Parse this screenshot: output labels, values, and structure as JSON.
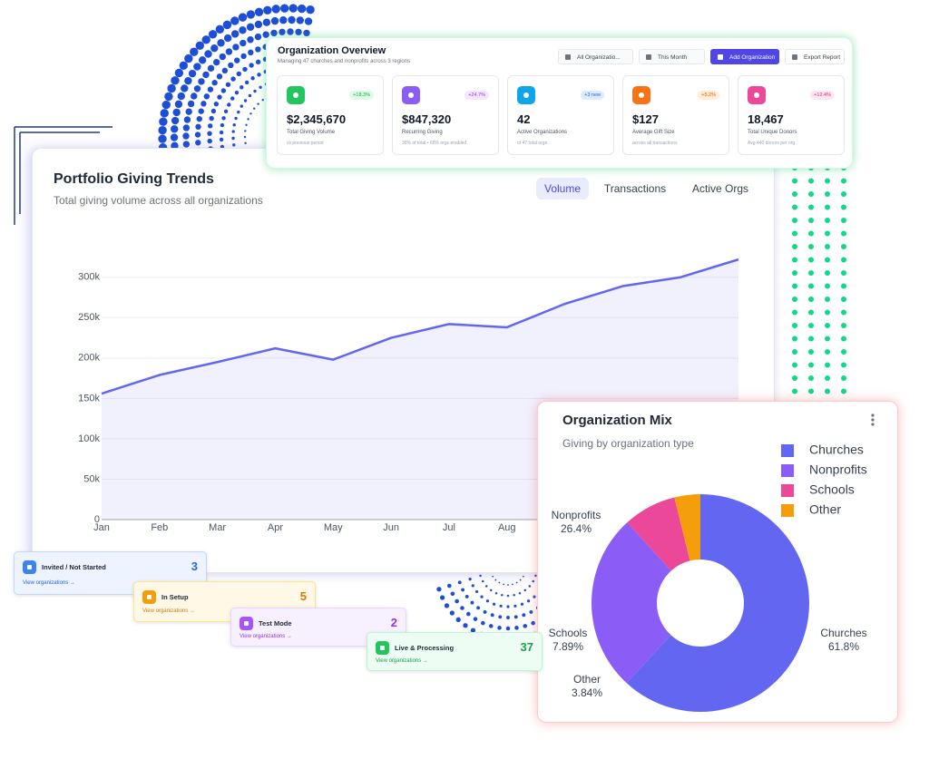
{
  "overview": {
    "title": "Organization Overview",
    "subtitle": "Managing 47 churches and nonprofits across 3 regions",
    "filters": [
      "All Organizatio...",
      "This Month"
    ],
    "buttons": [
      "Add Organization",
      "Export Report"
    ],
    "stats": [
      {
        "value": "$2,345,670",
        "label": "Total Giving Volume",
        "note": "vs previous period",
        "badge": "+18.3%"
      },
      {
        "value": "$847,320",
        "label": "Recurring Giving",
        "note": "36% of total • 68% orgs enabled",
        "badge": "+24.7%"
      },
      {
        "value": "42",
        "label": "Active Organizations",
        "note": "of 47 total orgs",
        "badge": "+3 new"
      },
      {
        "value": "$127",
        "label": "Average Gift Size",
        "note": "across all transactions",
        "badge": "+5.2%"
      },
      {
        "value": "18,467",
        "label": "Total Unique Donors",
        "note": "Avg 440 donors per org",
        "badge": "+12.4%"
      }
    ]
  },
  "chart_data": [
    {
      "type": "line",
      "title": "Portfolio Giving Trends",
      "subtitle": "Total giving volume across all organizations",
      "tabs": [
        "Volume",
        "Transactions",
        "Active Orgs"
      ],
      "categories": [
        "Jan",
        "Feb",
        "Mar",
        "Apr",
        "May",
        "Jun",
        "Jul",
        "Aug",
        null,
        null,
        null,
        null
      ],
      "values": [
        156000,
        179000,
        195000,
        212000,
        198000,
        225000,
        242000,
        238000,
        267000,
        289000,
        300000,
        322000
      ],
      "color": "#6366f1",
      "ylim": [
        0,
        330000
      ],
      "yticks": [
        0,
        {
          "value": 50000,
          "label": "50k"
        },
        {
          "value": 100000,
          "label": "100k"
        },
        {
          "value": 150000,
          "label": "150k"
        },
        {
          "value": 200000,
          "label": "200k"
        },
        {
          "value": 250000,
          "label": "250k"
        },
        {
          "value": 300000,
          "label": "300k"
        }
      ],
      "grid": true
    },
    {
      "type": "donut",
      "title": "Organization Mix",
      "subtitle": "Giving by organization type",
      "categories": [
        "Churches",
        "Nonprofits",
        "Schools",
        "Other"
      ],
      "values": [
        61.8,
        26.4,
        7.89,
        3.84
      ],
      "value_labels": [
        "61.8%",
        "26.4%",
        "7.89%",
        "3.84%"
      ],
      "colors": [
        "#6366f1",
        "#8b5cf6",
        "#ec4899",
        "#f59e0b"
      ],
      "legend": "top-right"
    }
  ],
  "status_cards": [
    {
      "label": "Invited / Not Started",
      "count": 3,
      "link": "View organizations →"
    },
    {
      "label": "In Setup",
      "count": 5,
      "link": "View organizations →"
    },
    {
      "label": "Test Mode",
      "count": 2,
      "link": "View organizations →"
    },
    {
      "label": "Live & Processing",
      "count": 37,
      "link": "View organizations →"
    }
  ]
}
